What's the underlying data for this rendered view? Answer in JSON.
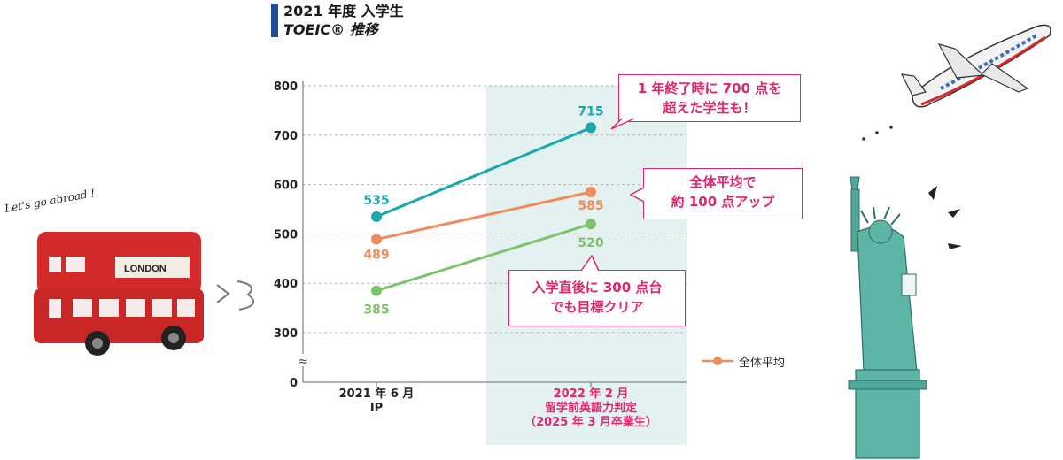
{
  "title": {
    "line1": "2021 年度 入学生",
    "line2": "TOEIC® 推移"
  },
  "chart_data": {
    "type": "line",
    "categories": [
      [
        "2021 年 6 月",
        "IP"
      ],
      [
        "2022 年 2 月",
        "留学前英語力判定",
        "（2025 年 3 月卒業生）"
      ]
    ],
    "yticks": [
      0,
      300,
      400,
      500,
      600,
      700,
      800
    ],
    "ylim": [
      300,
      800
    ],
    "axis_break": true,
    "grid": true,
    "series": [
      {
        "key": "top",
        "values": [
          535,
          715
        ],
        "color": "#1aa7ad"
      },
      {
        "key": "mid",
        "name": "全体平均",
        "values": [
          489,
          585
        ],
        "color": "#f08c5a"
      },
      {
        "key": "low",
        "values": [
          385,
          520
        ],
        "color": "#7cc36b"
      }
    ],
    "legend": {
      "label": "全体平均",
      "position": "right"
    }
  },
  "callouts": {
    "top": {
      "line1": "1 年終了時に 700 点を",
      "line2": "超えた学生も！"
    },
    "mid": {
      "line1": "全体平均で",
      "line2": "約 100 点アップ"
    },
    "low": {
      "line1": "入学直後に 300 点台",
      "line2": "でも目標クリア"
    }
  },
  "decor": {
    "handwritten": "Let's go abroad !",
    "bus_text": "LONDON",
    "colors": {
      "bus": "#d42a2a",
      "statue": "#4fa89a",
      "plane": "#3b6fb6"
    }
  }
}
